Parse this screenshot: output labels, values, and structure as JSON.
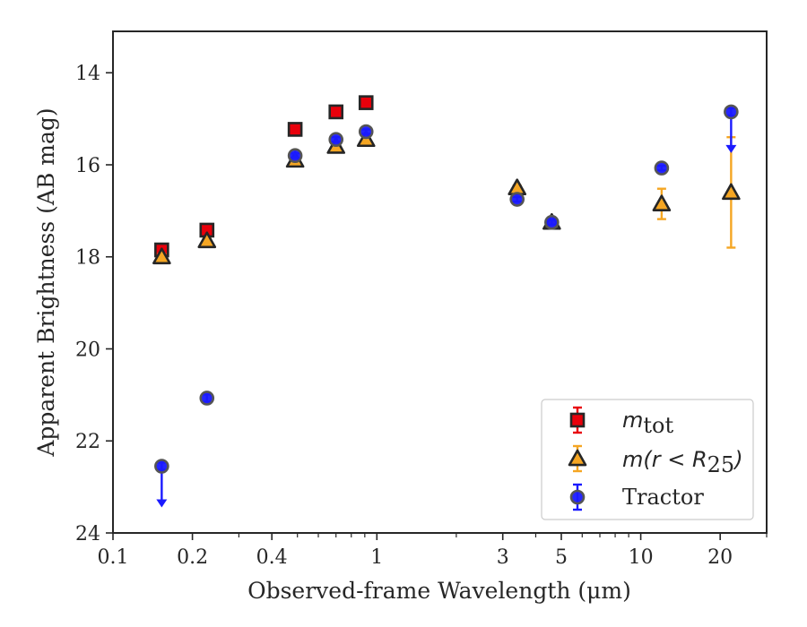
{
  "chart_data": {
    "type": "scatter",
    "xlabel": "Observed-frame Wavelength (μm)",
    "ylabel": "Apparent Brightness (AB mag)",
    "x_scale": "log",
    "xlim": [
      0.1,
      30
    ],
    "ylim": [
      24,
      13.1
    ],
    "y_inverted": true,
    "x_ticks": [
      {
        "value": 0.1,
        "label": "0.1"
      },
      {
        "value": 0.2,
        "label": "0.2"
      },
      {
        "value": 0.4,
        "label": "0.4"
      },
      {
        "value": 1,
        "label": "1"
      },
      {
        "value": 3,
        "label": "3"
      },
      {
        "value": 5,
        "label": "5"
      },
      {
        "value": 10,
        "label": "10"
      },
      {
        "value": 20,
        "label": "20"
      }
    ],
    "y_ticks": [
      {
        "value": 14,
        "label": "14"
      },
      {
        "value": 16,
        "label": "16"
      },
      {
        "value": 18,
        "label": "18"
      },
      {
        "value": 20,
        "label": "20"
      },
      {
        "value": 22,
        "label": "22"
      },
      {
        "value": 24,
        "label": "24"
      }
    ],
    "grid": false,
    "legend_position": "lower-right",
    "series": [
      {
        "name": "m_tot",
        "marker": "square",
        "color": "#e8000b",
        "error_color": "#e8000b",
        "points": [
          {
            "x": 0.153,
            "y": 17.85,
            "err": 0.1
          },
          {
            "x": 0.227,
            "y": 17.42,
            "err": 0.07
          },
          {
            "x": 0.49,
            "y": 15.23,
            "err": 0.06
          },
          {
            "x": 0.7,
            "y": 14.85,
            "err": 0.06
          },
          {
            "x": 0.91,
            "y": 14.65,
            "err": 0.06
          }
        ]
      },
      {
        "name": "m(r < R25)",
        "marker": "triangle",
        "color": "#f5a623",
        "error_color": "#f5a623",
        "points": [
          {
            "x": 0.153,
            "y": 18.0,
            "err": 0.06
          },
          {
            "x": 0.227,
            "y": 17.65,
            "err": 0.05
          },
          {
            "x": 0.49,
            "y": 15.9,
            "err": 0.05
          },
          {
            "x": 0.7,
            "y": 15.6,
            "err": 0.05
          },
          {
            "x": 0.91,
            "y": 15.45,
            "err": 0.05
          },
          {
            "x": 3.4,
            "y": 16.5,
            "err": 0.05
          },
          {
            "x": 4.6,
            "y": 17.25,
            "err": 0.05
          },
          {
            "x": 12.0,
            "y": 16.85,
            "err": 0.33
          },
          {
            "x": 22.0,
            "y": 16.6,
            "err": 1.2
          }
        ]
      },
      {
        "name": "Tractor",
        "marker": "circle",
        "color": "#1a1aff",
        "error_color": "#1a1aff",
        "points": [
          {
            "x": 0.153,
            "y": 22.55,
            "err": 0.08,
            "upper_limit": true
          },
          {
            "x": 0.227,
            "y": 21.07,
            "err": 0.08
          },
          {
            "x": 0.49,
            "y": 15.8,
            "err": 0.05
          },
          {
            "x": 0.7,
            "y": 15.45,
            "err": 0.05
          },
          {
            "x": 0.91,
            "y": 15.28,
            "err": 0.05
          },
          {
            "x": 3.4,
            "y": 16.75,
            "err": 0.05
          },
          {
            "x": 4.6,
            "y": 17.25,
            "err": 0.05
          },
          {
            "x": 12.0,
            "y": 16.07,
            "err": 0.05
          },
          {
            "x": 22.0,
            "y": 14.85,
            "err": 0.08,
            "upper_limit": true
          }
        ]
      }
    ]
  },
  "legend": {
    "entries": [
      {
        "series": "m_tot",
        "main": "m",
        "sub": "tot"
      },
      {
        "series": "m(r < R25)",
        "main": "m(r < R",
        "sub": "25",
        "tail": ")"
      },
      {
        "series": "Tractor",
        "main": "Tractor"
      }
    ]
  }
}
